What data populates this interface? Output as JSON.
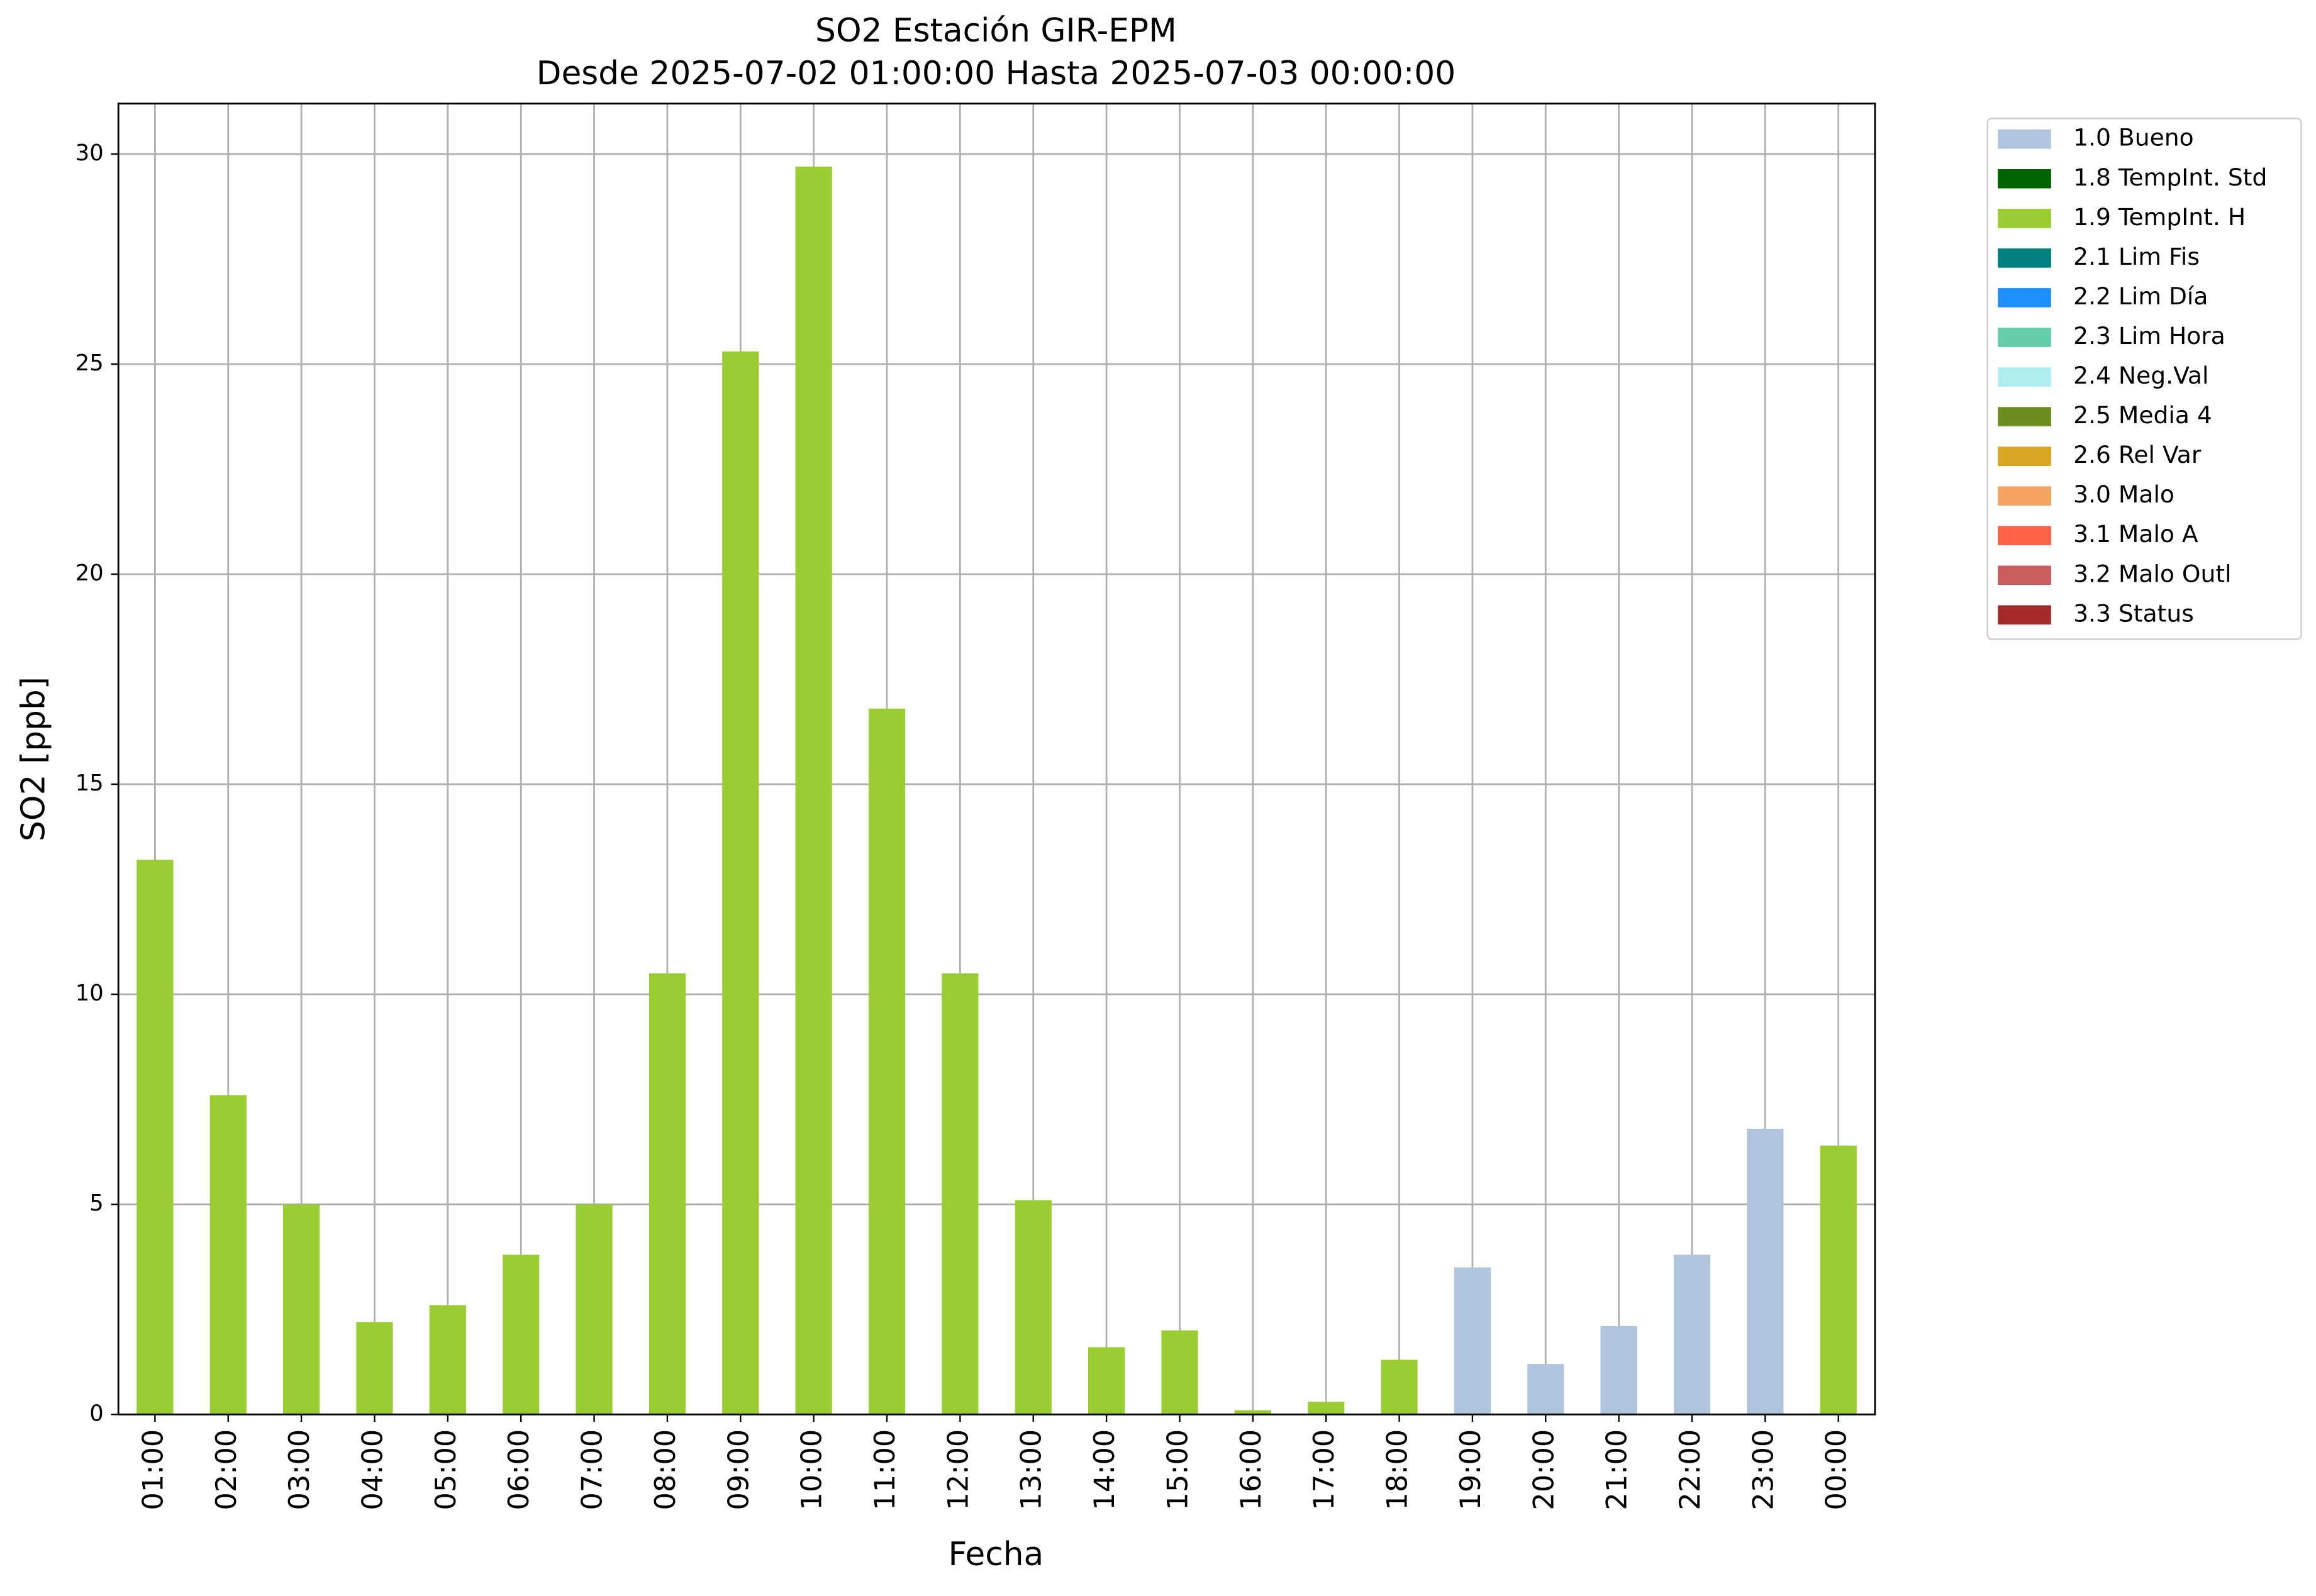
{
  "chart_data": {
    "type": "stacked_bar",
    "title": "SO2 Estación GIR-EPM",
    "subtitle": "Desde 2025-07-02 01:00:00 Hasta 2025-07-03 00:00:00",
    "x_label": "Fecha",
    "y_label": "SO2 [ppb]",
    "categories": [
      "01:00",
      "02:00",
      "03:00",
      "04:00",
      "05:00",
      "06:00",
      "07:00",
      "08:00",
      "09:00",
      "10:00",
      "11:00",
      "12:00",
      "13:00",
      "14:00",
      "15:00",
      "16:00",
      "17:00",
      "18:00",
      "19:00",
      "20:00",
      "21:00",
      "22:00",
      "23:00",
      "00:00"
    ],
    "series": [
      {
        "name": "1.0 Bueno",
        "color": "#b0c4de",
        "values": [
          null,
          null,
          null,
          null,
          null,
          null,
          null,
          null,
          null,
          null,
          null,
          null,
          null,
          null,
          null,
          null,
          null,
          null,
          3.5,
          1.2,
          2.1,
          3.8,
          6.8,
          null
        ]
      },
      {
        "name": "1.8 TempInt. Std",
        "color": "#006400",
        "values": [
          null,
          null,
          null,
          null,
          null,
          null,
          null,
          null,
          null,
          null,
          null,
          null,
          null,
          null,
          null,
          null,
          null,
          null,
          null,
          null,
          null,
          null,
          null,
          null
        ]
      },
      {
        "name": "1.9 TempInt. H",
        "color": "#9acd32",
        "values": [
          13.2,
          7.6,
          5.0,
          2.2,
          2.6,
          3.8,
          5.0,
          10.5,
          25.3,
          29.7,
          16.8,
          10.5,
          5.1,
          1.6,
          2.0,
          0.1,
          0.3,
          1.3,
          null,
          null,
          null,
          null,
          null,
          6.4
        ]
      },
      {
        "name": "2.1 Lim Fis",
        "color": "#008080",
        "values": [
          null,
          null,
          null,
          null,
          null,
          null,
          null,
          null,
          null,
          null,
          null,
          null,
          null,
          null,
          null,
          null,
          null,
          null,
          null,
          null,
          null,
          null,
          null,
          null
        ]
      },
      {
        "name": "2.2 Lim Día",
        "color": "#1e90ff",
        "values": [
          null,
          null,
          null,
          null,
          null,
          null,
          null,
          null,
          null,
          null,
          null,
          null,
          null,
          null,
          null,
          null,
          null,
          null,
          null,
          null,
          null,
          null,
          null,
          null
        ]
      },
      {
        "name": "2.3 Lim Hora",
        "color": "#66cdaa",
        "values": [
          null,
          null,
          null,
          null,
          null,
          null,
          null,
          null,
          null,
          null,
          null,
          null,
          null,
          null,
          null,
          null,
          null,
          null,
          null,
          null,
          null,
          null,
          null,
          null
        ]
      },
      {
        "name": "2.4 Neg.Val",
        "color": "#afeeee",
        "values": [
          null,
          null,
          null,
          null,
          null,
          null,
          null,
          null,
          null,
          null,
          null,
          null,
          null,
          null,
          null,
          null,
          null,
          null,
          null,
          null,
          null,
          null,
          null,
          null
        ]
      },
      {
        "name": "2.5 Media 4",
        "color": "#6b8e23",
        "values": [
          null,
          null,
          null,
          null,
          null,
          null,
          null,
          null,
          null,
          null,
          null,
          null,
          null,
          null,
          null,
          null,
          null,
          null,
          null,
          null,
          null,
          null,
          null,
          null
        ]
      },
      {
        "name": "2.6 Rel Var",
        "color": "#daa520",
        "values": [
          null,
          null,
          null,
          null,
          null,
          null,
          null,
          null,
          null,
          null,
          null,
          null,
          null,
          null,
          null,
          null,
          null,
          null,
          null,
          null,
          null,
          null,
          null,
          null
        ]
      },
      {
        "name": "3.0 Malo",
        "color": "#f4a460",
        "values": [
          null,
          null,
          null,
          null,
          null,
          null,
          null,
          null,
          null,
          null,
          null,
          null,
          null,
          null,
          null,
          null,
          null,
          null,
          null,
          null,
          null,
          null,
          null,
          null
        ]
      },
      {
        "name": "3.1 Malo A",
        "color": "#ff6347",
        "values": [
          null,
          null,
          null,
          null,
          null,
          null,
          null,
          null,
          null,
          null,
          null,
          null,
          null,
          null,
          null,
          null,
          null,
          null,
          null,
          null,
          null,
          null,
          null,
          null
        ]
      },
      {
        "name": "3.2 Malo Outl",
        "color": "#cd5c5c",
        "values": [
          null,
          null,
          null,
          null,
          null,
          null,
          null,
          null,
          null,
          null,
          null,
          null,
          null,
          null,
          null,
          null,
          null,
          null,
          null,
          null,
          null,
          null,
          null,
          null
        ]
      },
      {
        "name": "3.3 Status",
        "color": "#a52a2a",
        "values": [
          null,
          null,
          null,
          null,
          null,
          null,
          null,
          null,
          null,
          null,
          null,
          null,
          null,
          null,
          null,
          null,
          null,
          null,
          null,
          null,
          null,
          null,
          null,
          null
        ]
      }
    ],
    "ylim": [
      0,
      31.2
    ],
    "yticks": [
      0,
      5,
      10,
      15,
      20,
      25,
      30
    ],
    "grid": true,
    "legend": "outside-right"
  }
}
